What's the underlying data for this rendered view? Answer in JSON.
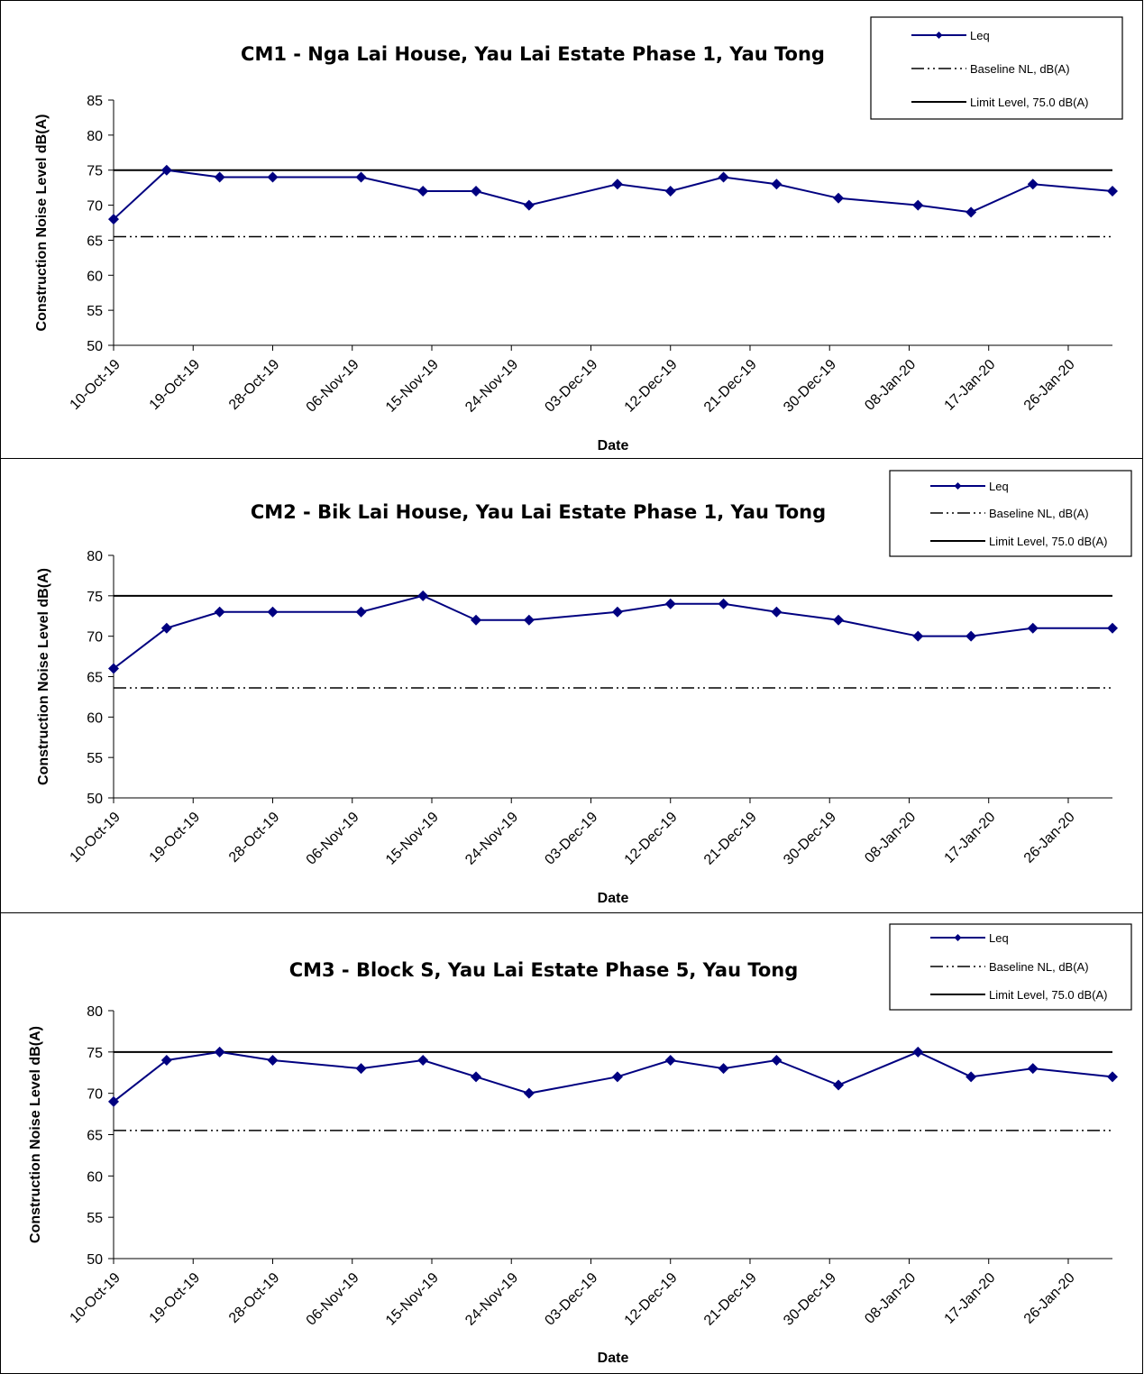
{
  "colors": {
    "series": "#000080",
    "baseline": "#000000",
    "limit": "#000000"
  },
  "chart_data": [
    {
      "type": "line",
      "title": "CM1 - Nga Lai House, Yau Lai Estate Phase 1, Yau Tong",
      "xlabel": "Date",
      "ylabel": "Construction Noise Level  dB(A)",
      "ylim": [
        50,
        85
      ],
      "yticks": [
        50,
        55,
        60,
        65,
        70,
        75,
        80,
        85
      ],
      "xlim": [
        "2019-10-10",
        "2020-01-31"
      ],
      "xticks": [
        "10-Oct-19",
        "19-Oct-19",
        "28-Oct-19",
        "06-Nov-19",
        "15-Nov-19",
        "24-Nov-19",
        "03-Dec-19",
        "12-Dec-19",
        "21-Dec-19",
        "30-Dec-19",
        "08-Jan-20",
        "17-Jan-20",
        "26-Jan-20"
      ],
      "legend_position": "top-right",
      "legend": [
        "Leq",
        "Baseline NL, dB(A)",
        "Limit Level, 75.0 dB(A)"
      ],
      "series": [
        {
          "name": "Leq",
          "x": [
            "2019-10-10",
            "2019-10-16",
            "2019-10-22",
            "2019-10-28",
            "2019-11-07",
            "2019-11-14",
            "2019-11-20",
            "2019-11-26",
            "2019-12-06",
            "2019-12-12",
            "2019-12-18",
            "2019-12-24",
            "2019-12-31",
            "2020-01-09",
            "2020-01-15",
            "2020-01-22",
            "2020-01-31"
          ],
          "values": [
            68,
            75,
            74,
            74,
            74,
            72,
            72,
            70,
            73,
            72,
            74,
            73,
            71,
            70,
            69,
            73,
            72
          ]
        }
      ],
      "baseline": 65.5,
      "limit": 75.0
    },
    {
      "type": "line",
      "title": "CM2 - Bik Lai House, Yau Lai Estate Phase 1, Yau Tong",
      "xlabel": "Date",
      "ylabel": "Construction Noise Level  dB(A)",
      "ylim": [
        50,
        80
      ],
      "yticks": [
        50,
        55,
        60,
        65,
        70,
        75,
        80
      ],
      "xlim": [
        "2019-10-10",
        "2020-01-31"
      ],
      "xticks": [
        "10-Oct-19",
        "19-Oct-19",
        "28-Oct-19",
        "06-Nov-19",
        "15-Nov-19",
        "24-Nov-19",
        "03-Dec-19",
        "12-Dec-19",
        "21-Dec-19",
        "30-Dec-19",
        "08-Jan-20",
        "17-Jan-20",
        "26-Jan-20"
      ],
      "legend_position": "top-right",
      "legend": [
        "Leq",
        "Baseline NL, dB(A)",
        "Limit Level, 75.0 dB(A)"
      ],
      "series": [
        {
          "name": "Leq",
          "x": [
            "2019-10-10",
            "2019-10-16",
            "2019-10-22",
            "2019-10-28",
            "2019-11-07",
            "2019-11-14",
            "2019-11-20",
            "2019-11-26",
            "2019-12-06",
            "2019-12-12",
            "2019-12-18",
            "2019-12-24",
            "2019-12-31",
            "2020-01-09",
            "2020-01-15",
            "2020-01-22",
            "2020-01-31"
          ],
          "values": [
            66,
            71,
            73,
            73,
            73,
            75,
            72,
            72,
            73,
            74,
            74,
            73,
            72,
            70,
            70,
            71,
            71
          ]
        }
      ],
      "baseline": 63.6,
      "limit": 75.0
    },
    {
      "type": "line",
      "title": "CM3 - Block S, Yau Lai Estate Phase 5, Yau Tong",
      "xlabel": "Date",
      "ylabel": "Construction Noise Level  dB(A)",
      "ylim": [
        50,
        80
      ],
      "yticks": [
        50,
        55,
        60,
        65,
        70,
        75,
        80
      ],
      "xlim": [
        "2019-10-10",
        "2020-01-31"
      ],
      "xticks": [
        "10-Oct-19",
        "19-Oct-19",
        "28-Oct-19",
        "06-Nov-19",
        "15-Nov-19",
        "24-Nov-19",
        "03-Dec-19",
        "12-Dec-19",
        "21-Dec-19",
        "30-Dec-19",
        "08-Jan-20",
        "17-Jan-20",
        "26-Jan-20"
      ],
      "legend_position": "top-right",
      "legend": [
        "Leq",
        "Baseline NL, dB(A)",
        "Limit Level, 75.0 dB(A)"
      ],
      "series": [
        {
          "name": "Leq",
          "x": [
            "2019-10-10",
            "2019-10-16",
            "2019-10-22",
            "2019-10-28",
            "2019-11-07",
            "2019-11-14",
            "2019-11-20",
            "2019-11-26",
            "2019-12-06",
            "2019-12-12",
            "2019-12-18",
            "2019-12-24",
            "2019-12-31",
            "2020-01-09",
            "2020-01-15",
            "2020-01-22",
            "2020-01-31"
          ],
          "values": [
            69,
            74,
            75,
            74,
            73,
            74,
            72,
            70,
            72,
            74,
            73,
            74,
            71,
            75,
            72,
            73,
            72
          ]
        }
      ],
      "baseline": 65.5,
      "limit": 75.0
    }
  ]
}
